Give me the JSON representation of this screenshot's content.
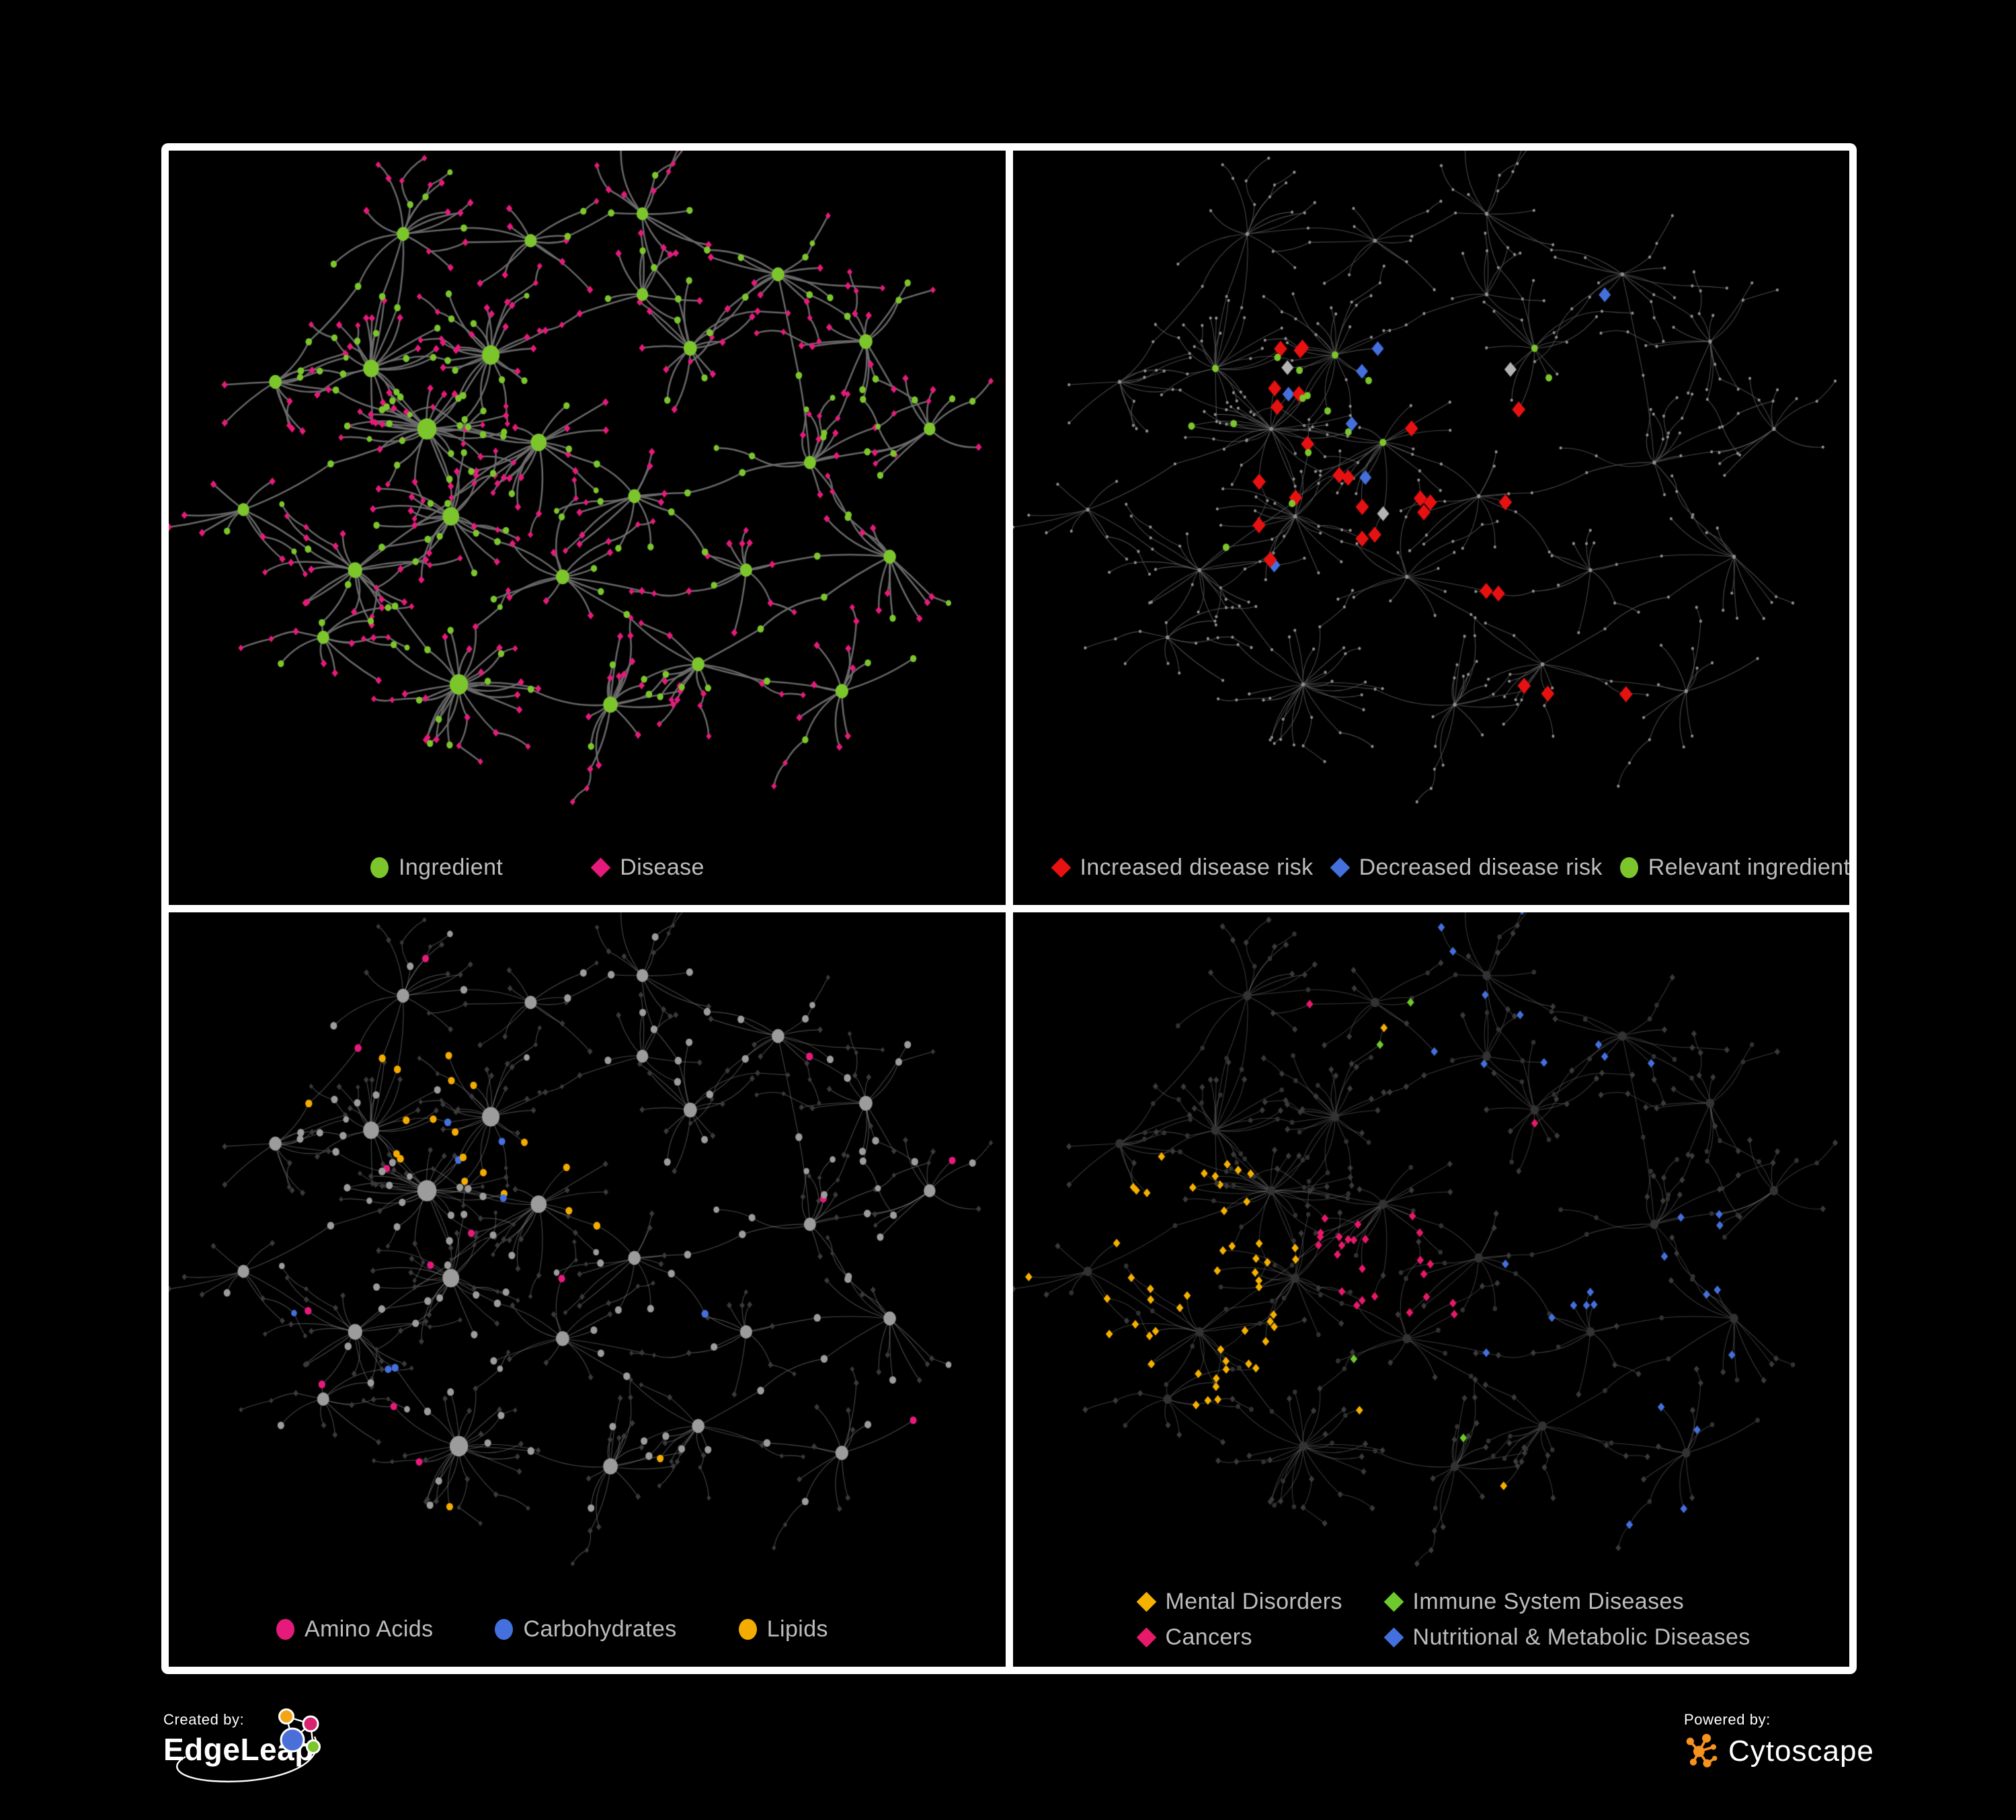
{
  "panels": [
    {
      "id": "ingredient-disease",
      "legend": [
        {
          "label": "Ingredient",
          "color": "#7CC62C",
          "shape": "circle"
        },
        {
          "label": "Disease",
          "color": "#E61A7B",
          "shape": "diamond"
        }
      ]
    },
    {
      "id": "disease-risk",
      "legend": [
        {
          "label": "Increased disease risk",
          "color": "#E81111",
          "shape": "diamond"
        },
        {
          "label": "Decreased disease risk",
          "color": "#4470DD",
          "shape": "diamond"
        },
        {
          "label": "Relevant ingredient",
          "color": "#7CC62C",
          "shape": "circle"
        }
      ]
    },
    {
      "id": "nutrient-classes",
      "legend": [
        {
          "label": "Amino Acids",
          "color": "#E61A7B",
          "shape": "circle"
        },
        {
          "label": "Carbohydrates",
          "color": "#4470DD",
          "shape": "circle"
        },
        {
          "label": "Lipids",
          "color": "#F5AC00",
          "shape": "circle"
        }
      ]
    },
    {
      "id": "disease-classes",
      "columns": 2,
      "legend": [
        {
          "label": "Mental Disorders",
          "color": "#F6B000",
          "shape": "diamond"
        },
        {
          "label": "Immune System Diseases",
          "color": "#6EC92E",
          "shape": "diamond"
        },
        {
          "label": "Cancers",
          "color": "#E8186A",
          "shape": "diamond"
        },
        {
          "label": "Nutritional & Metabolic Diseases",
          "color": "#4470DD",
          "shape": "diamond"
        }
      ]
    }
  ],
  "footer": {
    "created_by": "Created by:",
    "created_brand": "EdgeLeap",
    "powered_by": "Powered by:",
    "powered_brand": "Cytoscape"
  },
  "colors": {
    "background": "#000000",
    "panel_border": "#FFFFFF",
    "legend_text": "#BDBDBD",
    "edge_p1": "#6F6F6F",
    "edge_p2": "#5A5A5A",
    "edge_p34": "#8B8B8B",
    "dim_dot": "#8F8F8F",
    "silver_diamond": "#B4B4B4",
    "gray_circle": "#9C9C9C",
    "dark_diamond": "#3A3A3A",
    "dark_circle": "#323232",
    "cytoscape_orange": "#F6921E",
    "edgeleap_blue": "#4A6FD8",
    "edgeleap_pink": "#D6246E",
    "edgeleap_orange": "#F2A516",
    "edgeleap_green": "#7CC62C"
  },
  "network": {
    "seed": 77
  }
}
